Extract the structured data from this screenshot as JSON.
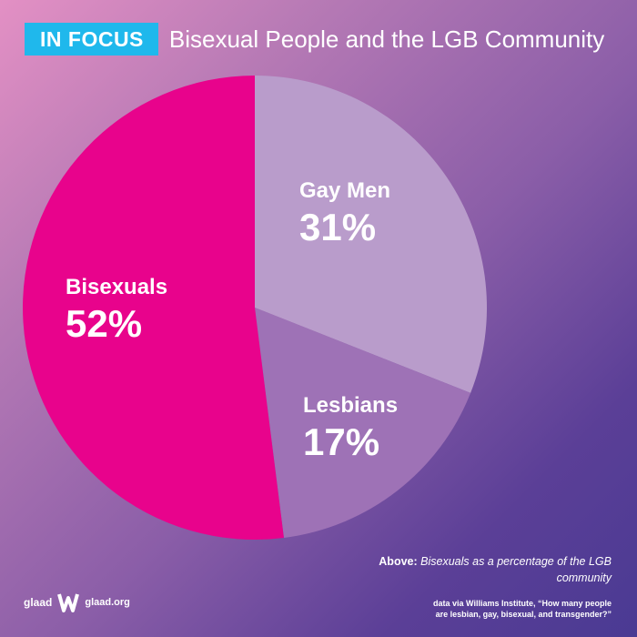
{
  "header": {
    "badge": "IN FOCUS",
    "title": "Bisexual People and the LGB Community"
  },
  "chart_data": {
    "type": "pie",
    "title": "Bisexual People and the LGB Community",
    "slices": [
      {
        "label": "Gay Men",
        "value": 31,
        "display": "31%",
        "color": "#b99ccb"
      },
      {
        "label": "Lesbians",
        "value": 17,
        "display": "17%",
        "color": "#9e72b6"
      },
      {
        "label": "Bisexuals",
        "value": 52,
        "display": "52%",
        "color": "#e8038c"
      }
    ],
    "start": "12 o'clock",
    "direction": "clockwise"
  },
  "caption": {
    "lead": "Above:",
    "text": "Bisexuals as a percentage of the LGB community"
  },
  "source": {
    "line1": "data via Williams Institute, “How many people",
    "line2": "are lesbian, gay, bisexual, and transgender?”"
  },
  "logo": {
    "word": "glaad",
    "url": "glaad.org",
    "mark_color": "#ffffff"
  }
}
